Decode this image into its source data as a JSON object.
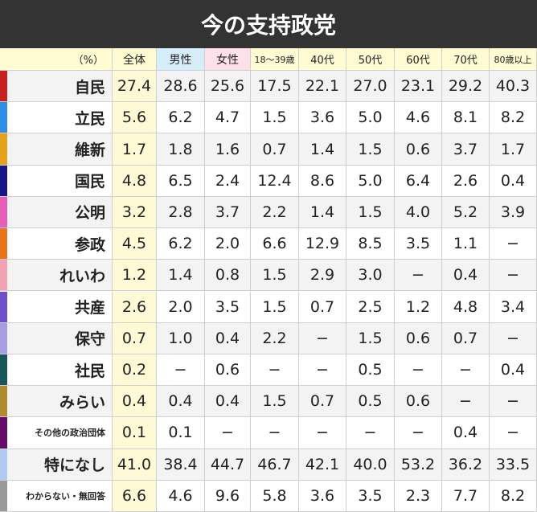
{
  "title": "今の支持政党",
  "table": {
    "header": [
      "（%）",
      "全体",
      "男性",
      "女性",
      "18〜39歳",
      "40代",
      "50代",
      "60代",
      "70代",
      "80歳以上"
    ],
    "header_colors": [
      "#fffbd3",
      "#fffbd3",
      "#d6eefa",
      "#fde0ea",
      "#fffbd3",
      "#fffbd3",
      "#fffbd3",
      "#fffbd3",
      "#fffbd3",
      "#fffbd3"
    ],
    "rows": [
      {
        "party": "自民",
        "color": "#c8201f",
        "values": [
          "27.4",
          "28.6",
          "25.6",
          "17.5",
          "22.1",
          "27.0",
          "23.1",
          "29.2",
          "40.3"
        ]
      },
      {
        "party": "立民",
        "color": "#2f8ee8",
        "values": [
          "5.6",
          "6.2",
          "4.7",
          "1.5",
          "3.6",
          "5.0",
          "4.6",
          "8.1",
          "8.2"
        ]
      },
      {
        "party": "維新",
        "color": "#e3a21a",
        "values": [
          "1.7",
          "1.8",
          "1.6",
          "0.7",
          "1.4",
          "1.5",
          "0.6",
          "3.7",
          "1.7"
        ]
      },
      {
        "party": "国民",
        "color": "#16168a",
        "values": [
          "4.8",
          "6.5",
          "2.4",
          "12.4",
          "8.6",
          "5.0",
          "6.4",
          "2.6",
          "0.4"
        ]
      },
      {
        "party": "公明",
        "color": "#e75cb6",
        "values": [
          "3.2",
          "2.8",
          "3.7",
          "2.2",
          "1.4",
          "1.5",
          "4.0",
          "5.2",
          "3.9"
        ]
      },
      {
        "party": "参政",
        "color": "#e8731a",
        "values": [
          "4.5",
          "6.2",
          "2.0",
          "6.6",
          "12.9",
          "8.5",
          "3.5",
          "1.1",
          "−"
        ]
      },
      {
        "party": "れいわ",
        "color": "#f2a3b3",
        "values": [
          "1.2",
          "1.4",
          "0.8",
          "1.5",
          "2.9",
          "3.0",
          "−",
          "0.4",
          "−"
        ]
      },
      {
        "party": "共産",
        "color": "#6e4fcb",
        "values": [
          "2.6",
          "2.0",
          "3.5",
          "1.5",
          "0.7",
          "2.5",
          "1.2",
          "4.8",
          "3.4"
        ]
      },
      {
        "party": "保守",
        "color": "#a79de3",
        "values": [
          "0.7",
          "1.0",
          "0.4",
          "2.2",
          "−",
          "1.5",
          "0.6",
          "0.7",
          "−"
        ]
      },
      {
        "party": "社民",
        "color": "#17575a",
        "values": [
          "0.2",
          "−",
          "0.6",
          "−",
          "−",
          "0.5",
          "−",
          "−",
          "0.4"
        ]
      },
      {
        "party": "みらい",
        "color": "#b08a30",
        "values": [
          "0.4",
          "0.4",
          "0.4",
          "1.5",
          "0.7",
          "0.5",
          "0.6",
          "−",
          "−"
        ]
      },
      {
        "party": "その他の政治団体",
        "color": "#680a6a",
        "values": [
          "0.1",
          "0.1",
          "−",
          "−",
          "−",
          "−",
          "−",
          "0.4",
          "−"
        ]
      },
      {
        "party": "特になし",
        "color": "#b3caf0",
        "values": [
          "41.0",
          "38.4",
          "44.7",
          "46.7",
          "42.1",
          "40.0",
          "53.2",
          "36.2",
          "33.5"
        ]
      },
      {
        "party": "わからない・無回答",
        "color": "#999999",
        "values": [
          "6.6",
          "4.6",
          "9.6",
          "5.8",
          "3.6",
          "3.5",
          "2.3",
          "7.7",
          "8.2"
        ]
      }
    ]
  }
}
